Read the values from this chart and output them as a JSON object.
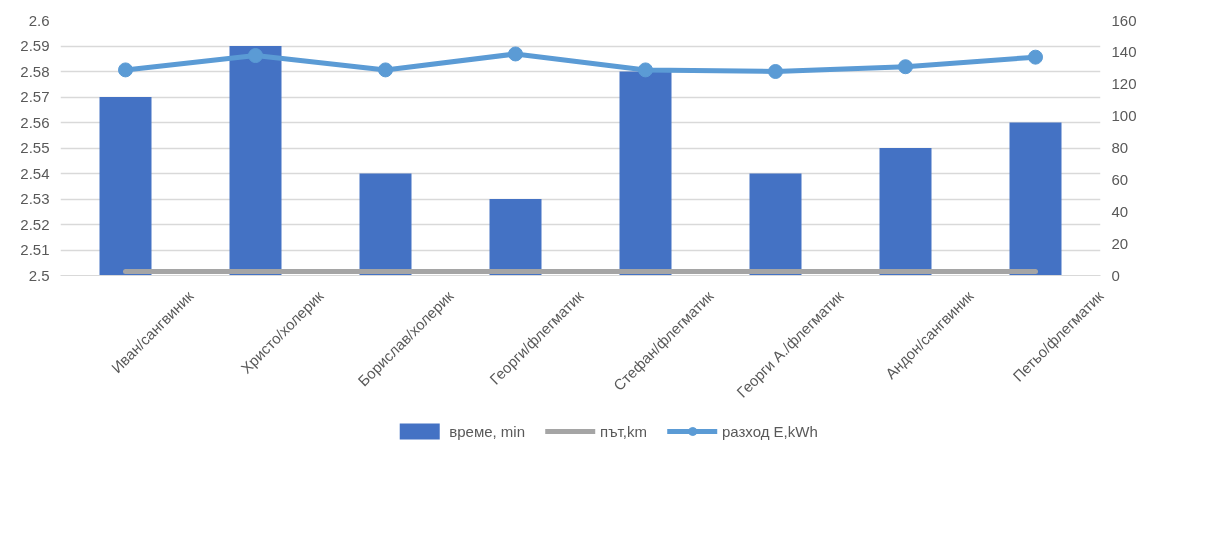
{
  "chart_data": {
    "type": "bar",
    "categories": [
      "Иван/сангвиник",
      "Христо/холерик",
      "Борислав/холерик",
      "Георги/флегматик",
      "Стефан/флегматик",
      "Георги А./флегматик",
      "Андон/сангвиник",
      "Петьо/флегматик"
    ],
    "series": [
      {
        "name": "време, min",
        "color": "#4472c4",
        "values": [
          2.57,
          2.59,
          2.54,
          2.53,
          2.58,
          2.54,
          2.55,
          2.56
        ]
      },
      {
        "name": "път,km",
        "color": "#a5a5a5",
        "type": "line",
        "axis": "y2",
        "marker": "none",
        "values": [
          2.5,
          2.5,
          2.5,
          2.5,
          2.5,
          2.5,
          2.5,
          2.5
        ]
      },
      {
        "name": "разход E,kWh",
        "color": "#5b9bd5",
        "type": "line",
        "axis": "y2",
        "marker": "circle",
        "values": [
          129,
          138,
          129,
          139,
          129,
          128,
          131,
          137
        ]
      }
    ],
    "ylim": [
      2.5,
      2.6
    ],
    "yticks": [
      2.5,
      2.51,
      2.52,
      2.53,
      2.54,
      2.55,
      2.56,
      2.57,
      2.58,
      2.59,
      2.6
    ],
    "y2lim": [
      0,
      160
    ],
    "y2ticks": [
      0,
      20,
      40,
      60,
      80,
      100,
      120,
      140,
      160
    ],
    "grid": "y",
    "legend": "bottom"
  }
}
